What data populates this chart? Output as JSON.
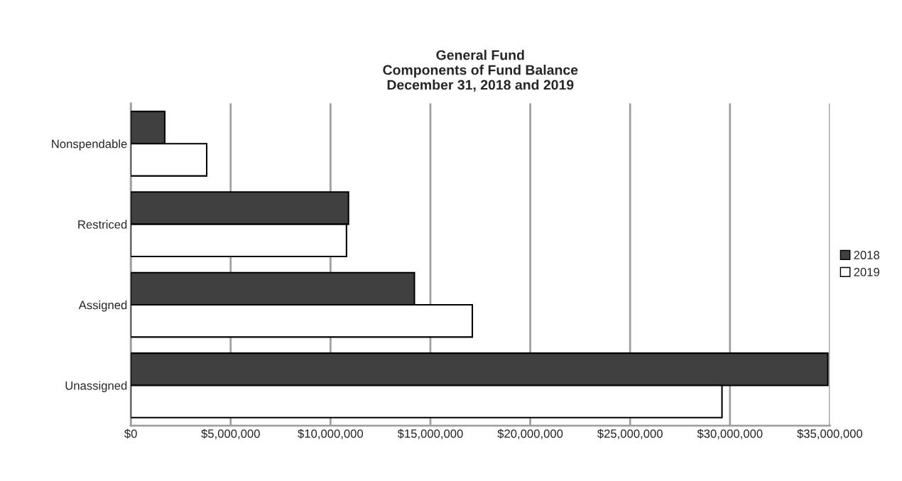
{
  "chart_data": {
    "type": "bar",
    "orientation": "horizontal",
    "title": "General Fund\nComponents of Fund Balance\nDecember 31, 2018 and 2019",
    "categories": [
      "Nonspendable",
      "Restriced",
      "Assigned",
      "Unassigned"
    ],
    "series": [
      {
        "name": "2018",
        "color": "#404040",
        "values": [
          1700000,
          10900000,
          14200000,
          34900000
        ]
      },
      {
        "name": "2019",
        "color": "#ffffff",
        "values": [
          3800000,
          10800000,
          17100000,
          29600000
        ]
      }
    ],
    "xlim": [
      0,
      35000000
    ],
    "xticks": [
      {
        "value": 0,
        "label": "$0"
      },
      {
        "value": 5000000,
        "label": "$5,000,000"
      },
      {
        "value": 10000000,
        "label": "$10,000,000"
      },
      {
        "value": 15000000,
        "label": "$15,000,000"
      },
      {
        "value": 20000000,
        "label": "$20,000,000"
      },
      {
        "value": 25000000,
        "label": "$25,000,000"
      },
      {
        "value": 30000000,
        "label": "$30,000,000"
      },
      {
        "value": 35000000,
        "label": "$35,000,000"
      }
    ],
    "grid": "x",
    "legend": "right"
  }
}
